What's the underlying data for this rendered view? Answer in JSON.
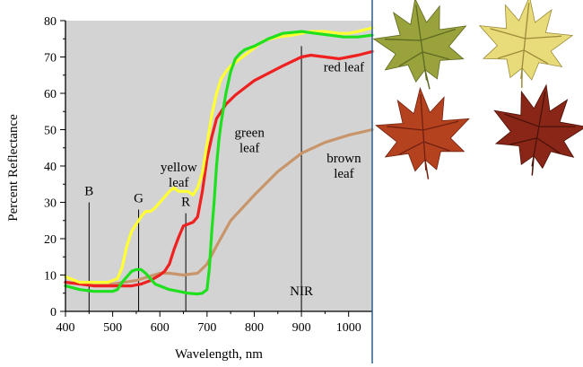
{
  "chart_data": {
    "type": "line",
    "title": "",
    "xlabel": "Wavelength, nm",
    "ylabel": "Percent Reflectance",
    "xlim": [
      400,
      1050
    ],
    "ylim": [
      0,
      80
    ],
    "x_ticks": [
      400,
      500,
      600,
      700,
      800,
      900,
      1000
    ],
    "y_ticks": [
      0,
      10,
      20,
      30,
      40,
      50,
      60,
      70,
      80
    ],
    "grid": false,
    "background_color": "#d3d3d3",
    "band_markers": [
      {
        "label": "B",
        "x": 450,
        "y_top": 30
      },
      {
        "label": "G",
        "x": 555,
        "y_top": 28
      },
      {
        "label": "R",
        "x": 655,
        "y_top": 27
      },
      {
        "label": "NIR",
        "x": 900,
        "y_top": 73
      }
    ],
    "annotations": [
      {
        "id": "yellow",
        "lines": [
          "yellow",
          "leaf"
        ],
        "x": 640,
        "y": 38.5
      },
      {
        "id": "green",
        "lines": [
          "green",
          "leaf"
        ],
        "x": 790,
        "y": 48
      },
      {
        "id": "red",
        "lines": [
          "red leaf"
        ],
        "x": 990,
        "y": 66
      },
      {
        "id": "brown",
        "lines": [
          "brown",
          "leaf"
        ],
        "x": 990,
        "y": 41
      },
      {
        "id": "nir",
        "lines": [
          "NIR"
        ],
        "x": 900,
        "y": 4.5
      }
    ],
    "series": [
      {
        "name": "yellow leaf",
        "color": "#ffff33",
        "x": [
          400,
          430,
          460,
          490,
          510,
          520,
          530,
          540,
          550,
          560,
          570,
          580,
          590,
          600,
          610,
          620,
          630,
          640,
          650,
          660,
          670,
          680,
          690,
          700,
          710,
          720,
          730,
          740,
          750,
          760,
          770,
          780,
          800,
          820,
          850,
          880,
          900,
          920,
          950,
          980,
          1000,
          1020,
          1050
        ],
        "values": [
          9.5,
          8,
          8,
          8,
          9,
          12,
          18,
          22,
          24,
          26,
          27.5,
          27.5,
          28.5,
          30,
          31.5,
          33,
          34,
          33,
          33,
          33,
          32,
          34,
          38,
          46,
          54,
          60,
          64,
          66,
          67.5,
          68.5,
          69.5,
          70.5,
          72.5,
          74.5,
          75.5,
          76,
          76.5,
          77,
          77,
          76.5,
          76.5,
          77,
          78
        ]
      },
      {
        "name": "green leaf",
        "color": "#1ee01e",
        "x": [
          400,
          430,
          460,
          490,
          500,
          510,
          520,
          530,
          540,
          550,
          560,
          570,
          580,
          590,
          600,
          620,
          640,
          660,
          680,
          690,
          700,
          705,
          710,
          715,
          720,
          725,
          730,
          740,
          750,
          760,
          770,
          780,
          800,
          830,
          860,
          900,
          930,
          960,
          990,
          1020,
          1050
        ],
        "values": [
          7,
          6,
          5.5,
          5.5,
          5.5,
          6,
          8,
          9.5,
          11,
          11.5,
          11.5,
          10.5,
          9,
          7.5,
          7,
          6,
          5.5,
          5,
          4.8,
          5,
          6,
          12,
          22,
          30,
          40,
          47,
          52,
          60,
          66,
          69.5,
          71,
          72,
          73,
          75,
          76.5,
          77,
          76.5,
          76,
          75.5,
          75.5,
          76
        ]
      },
      {
        "name": "red leaf",
        "color": "#ee2020",
        "x": [
          400,
          430,
          460,
          490,
          520,
          540,
          560,
          580,
          600,
          610,
          620,
          630,
          640,
          650,
          660,
          670,
          680,
          690,
          700,
          710,
          720,
          740,
          760,
          780,
          800,
          830,
          860,
          900,
          920,
          950,
          980,
          1000,
          1020,
          1050
        ],
        "values": [
          8,
          7.5,
          7,
          7,
          7,
          7,
          7.5,
          8.5,
          10,
          11,
          13,
          17,
          20.5,
          23.5,
          24,
          24.5,
          26,
          33,
          42,
          48,
          53,
          57,
          59.5,
          61.5,
          63.5,
          65.5,
          67.5,
          70,
          70.5,
          70,
          69.5,
          70,
          70.5,
          71.5
        ]
      },
      {
        "name": "brown leaf",
        "color": "#c8956a",
        "x": [
          400,
          450,
          500,
          550,
          600,
          620,
          650,
          680,
          700,
          720,
          750,
          800,
          850,
          900,
          950,
          1000,
          1050
        ],
        "values": [
          8,
          7.5,
          7.5,
          8.5,
          10.5,
          10.5,
          10,
          10.5,
          13,
          18,
          25,
          32,
          38.5,
          43.5,
          46.5,
          48.5,
          50
        ]
      }
    ]
  },
  "leaf_photos": [
    {
      "name": "green leaf photo",
      "fill": "#9aa23c",
      "vein": "#5d6a22"
    },
    {
      "name": "yellow leaf photo",
      "fill": "#e8dc7a",
      "vein": "#9c8a3a"
    },
    {
      "name": "red leaf photo",
      "fill": "#b5421f",
      "vein": "#6f2010"
    },
    {
      "name": "brown leaf photo",
      "fill": "#8a2618",
      "vein": "#4a1208"
    }
  ]
}
